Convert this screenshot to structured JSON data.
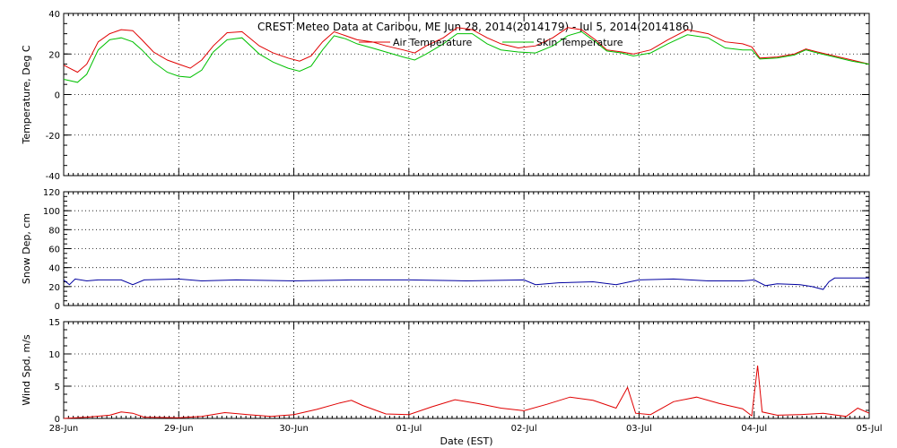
{
  "chart_data": {
    "title": "CREST Meteo Data at Caribou, ME   Jun 28, 2014(2014179) - Jul  5, 2014(2014186)",
    "type": "line",
    "xlabel": "Date (EST)",
    "x_range": [
      0,
      7
    ],
    "x_ticks": [
      "28-Jun",
      "29-Jun",
      "30-Jun",
      "01-Jul",
      "02-Jul",
      "03-Jul",
      "04-Jul",
      "05-Jul"
    ],
    "panels": [
      {
        "ylabel": "Temperature, Deg C",
        "ylim": [
          -40,
          40
        ],
        "yticks": [
          -40,
          -20,
          0,
          20,
          40
        ],
        "grid": true,
        "legend": "top-center",
        "series": [
          {
            "name": "Air Temperature",
            "color": "#e00000",
            "points": [
              [
                0,
                14.5
              ],
              [
                0.12,
                11
              ],
              [
                0.2,
                15
              ],
              [
                0.3,
                26
              ],
              [
                0.4,
                30
              ],
              [
                0.5,
                32
              ],
              [
                0.6,
                31.5
              ],
              [
                0.68,
                27
              ],
              [
                0.78,
                21
              ],
              [
                0.9,
                17
              ],
              [
                1.0,
                15
              ],
              [
                1.1,
                13
              ],
              [
                1.2,
                17
              ],
              [
                1.3,
                24
              ],
              [
                1.42,
                30.5
              ],
              [
                1.55,
                31
              ],
              [
                1.7,
                24
              ],
              [
                1.82,
                20.5
              ],
              [
                1.95,
                18
              ],
              [
                2.05,
                16.5
              ],
              [
                2.15,
                19
              ],
              [
                2.25,
                26
              ],
              [
                2.35,
                31
              ],
              [
                2.45,
                29
              ],
              [
                2.55,
                27
              ],
              [
                2.68,
                26
              ],
              [
                2.8,
                24
              ],
              [
                2.95,
                22
              ],
              [
                3.05,
                20.5
              ],
              [
                3.15,
                24
              ],
              [
                3.3,
                28
              ],
              [
                3.42,
                33
              ],
              [
                3.55,
                32
              ],
              [
                3.68,
                28
              ],
              [
                3.8,
                25
              ],
              [
                3.95,
                23
              ],
              [
                4.1,
                24
              ],
              [
                4.25,
                28
              ],
              [
                4.38,
                33
              ],
              [
                4.5,
                32
              ],
              [
                4.62,
                27
              ],
              [
                4.72,
                22
              ],
              [
                4.85,
                21
              ],
              [
                4.95,
                20
              ],
              [
                5.1,
                22
              ],
              [
                5.25,
                27
              ],
              [
                5.42,
                32
              ],
              [
                5.6,
                30
              ],
              [
                5.75,
                26
              ],
              [
                5.9,
                25
              ],
              [
                5.98,
                23.5
              ],
              [
                6.05,
                18
              ],
              [
                6.2,
                18.5
              ],
              [
                6.35,
                20
              ],
              [
                6.45,
                22.5
              ],
              [
                6.55,
                21
              ],
              [
                6.7,
                19
              ],
              [
                6.85,
                17
              ],
              [
                7.0,
                15
              ]
            ]
          },
          {
            "name": "Skin Temperature",
            "color": "#00c000",
            "points": [
              [
                0,
                7.5
              ],
              [
                0.12,
                6
              ],
              [
                0.2,
                10
              ],
              [
                0.3,
                22
              ],
              [
                0.4,
                27
              ],
              [
                0.5,
                28
              ],
              [
                0.6,
                26
              ],
              [
                0.68,
                22
              ],
              [
                0.78,
                16
              ],
              [
                0.9,
                11
              ],
              [
                1.0,
                9
              ],
              [
                1.1,
                8.5
              ],
              [
                1.2,
                12
              ],
              [
                1.3,
                21
              ],
              [
                1.42,
                27
              ],
              [
                1.55,
                28
              ],
              [
                1.7,
                20
              ],
              [
                1.82,
                16
              ],
              [
                1.95,
                13
              ],
              [
                2.05,
                11.5
              ],
              [
                2.15,
                14
              ],
              [
                2.25,
                22
              ],
              [
                2.35,
                29
              ],
              [
                2.45,
                27.5
              ],
              [
                2.55,
                25
              ],
              [
                2.68,
                23
              ],
              [
                2.8,
                21
              ],
              [
                2.95,
                18.5
              ],
              [
                3.05,
                17
              ],
              [
                3.15,
                20
              ],
              [
                3.3,
                25
              ],
              [
                3.42,
                30
              ],
              [
                3.55,
                30
              ],
              [
                3.68,
                25
              ],
              [
                3.8,
                22
              ],
              [
                3.95,
                21
              ],
              [
                4.1,
                20.5
              ],
              [
                4.25,
                24
              ],
              [
                4.38,
                29
              ],
              [
                4.5,
                31
              ],
              [
                4.62,
                26
              ],
              [
                4.72,
                21.5
              ],
              [
                4.85,
                20.5
              ],
              [
                4.95,
                19
              ],
              [
                5.1,
                20.5
              ],
              [
                5.25,
                25
              ],
              [
                5.42,
                29.5
              ],
              [
                5.6,
                28
              ],
              [
                5.75,
                23
              ],
              [
                5.9,
                22
              ],
              [
                5.98,
                22
              ],
              [
                6.05,
                17.5
              ],
              [
                6.2,
                18
              ],
              [
                6.35,
                19.5
              ],
              [
                6.45,
                22
              ],
              [
                6.55,
                20.5
              ],
              [
                6.7,
                18.5
              ],
              [
                6.85,
                16.5
              ],
              [
                7.0,
                15
              ]
            ]
          }
        ]
      },
      {
        "ylabel": "Snow Dep, cm",
        "ylim": [
          0,
          120
        ],
        "yticks": [
          0,
          20,
          40,
          60,
          80,
          100,
          120
        ],
        "grid": true,
        "series": [
          {
            "name": "",
            "color": "#0000a0",
            "points": [
              [
                0,
                27
              ],
              [
                0.05,
                22
              ],
              [
                0.1,
                28
              ],
              [
                0.2,
                26
              ],
              [
                0.3,
                27
              ],
              [
                0.5,
                27
              ],
              [
                0.6,
                22
              ],
              [
                0.7,
                27
              ],
              [
                1.0,
                28
              ],
              [
                1.2,
                26
              ],
              [
                1.5,
                27
              ],
              [
                2.0,
                26
              ],
              [
                2.5,
                27
              ],
              [
                3.0,
                27
              ],
              [
                3.5,
                26
              ],
              [
                4.0,
                27
              ],
              [
                4.1,
                22
              ],
              [
                4.3,
                24
              ],
              [
                4.6,
                25
              ],
              [
                4.8,
                22
              ],
              [
                5.0,
                27
              ],
              [
                5.3,
                28
              ],
              [
                5.6,
                26
              ],
              [
                5.9,
                26
              ],
              [
                6.0,
                27
              ],
              [
                6.1,
                21
              ],
              [
                6.2,
                23
              ],
              [
                6.4,
                22
              ],
              [
                6.5,
                20
              ],
              [
                6.6,
                17
              ],
              [
                6.65,
                25
              ],
              [
                6.7,
                29
              ],
              [
                6.9,
                29
              ],
              [
                7.0,
                29
              ]
            ]
          }
        ]
      },
      {
        "ylabel": "Wind Spd, m/s",
        "ylim": [
          0,
          15
        ],
        "yticks": [
          0,
          5,
          10,
          15
        ],
        "grid": true,
        "series": [
          {
            "name": "",
            "color": "#e00000",
            "points": [
              [
                0,
                0
              ],
              [
                0.2,
                0.2
              ],
              [
                0.4,
                0.5
              ],
              [
                0.5,
                1.0
              ],
              [
                0.6,
                0.8
              ],
              [
                0.7,
                0.2
              ],
              [
                1.0,
                0.1
              ],
              [
                1.2,
                0.3
              ],
              [
                1.4,
                0.9
              ],
              [
                1.6,
                0.6
              ],
              [
                1.8,
                0.3
              ],
              [
                2.0,
                0.6
              ],
              [
                2.2,
                1.4
              ],
              [
                2.4,
                2.4
              ],
              [
                2.5,
                2.8
              ],
              [
                2.6,
                2.0
              ],
              [
                2.8,
                0.7
              ],
              [
                3.0,
                0.6
              ],
              [
                3.2,
                1.8
              ],
              [
                3.4,
                2.9
              ],
              [
                3.6,
                2.3
              ],
              [
                3.8,
                1.6
              ],
              [
                4.0,
                1.2
              ],
              [
                4.2,
                2.2
              ],
              [
                4.4,
                3.3
              ],
              [
                4.6,
                2.8
              ],
              [
                4.8,
                1.6
              ],
              [
                4.9,
                4.8
              ],
              [
                4.97,
                0.8
              ],
              [
                5.1,
                0.6
              ],
              [
                5.3,
                2.6
              ],
              [
                5.5,
                3.3
              ],
              [
                5.7,
                2.3
              ],
              [
                5.9,
                1.5
              ],
              [
                5.98,
                0.4
              ],
              [
                6.03,
                8.2
              ],
              [
                6.07,
                1.0
              ],
              [
                6.2,
                0.5
              ],
              [
                6.4,
                0.6
              ],
              [
                6.6,
                0.8
              ],
              [
                6.8,
                0.3
              ],
              [
                6.9,
                1.6
              ],
              [
                7.0,
                0.8
              ]
            ]
          }
        ]
      }
    ]
  }
}
